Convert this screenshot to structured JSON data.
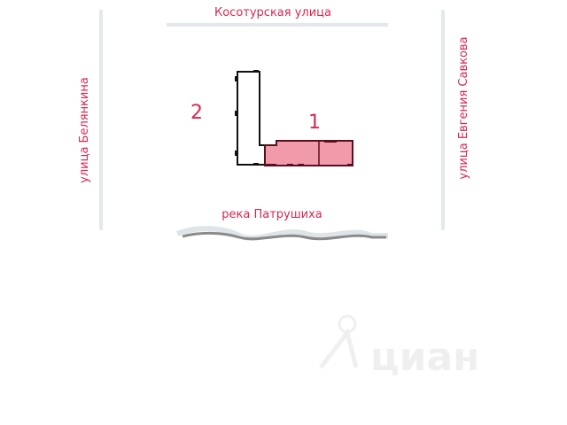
{
  "streets": {
    "top": "Косотурская  улица",
    "left": "улица  Белянкина",
    "right": "улица  Евгения  Савкова",
    "river": "река  Патрушиха"
  },
  "buildings": [
    {
      "label": "1",
      "highlighted": true,
      "fill": "#f09aaa",
      "stroke": "#5a0f1e"
    },
    {
      "label": "2",
      "highlighted": false,
      "fill": "#ffffff",
      "stroke": "#111111"
    }
  ],
  "colors": {
    "label": "#d6284f",
    "road": "#e3e8ec",
    "river": "#8a8a8a"
  },
  "watermark": "циан"
}
